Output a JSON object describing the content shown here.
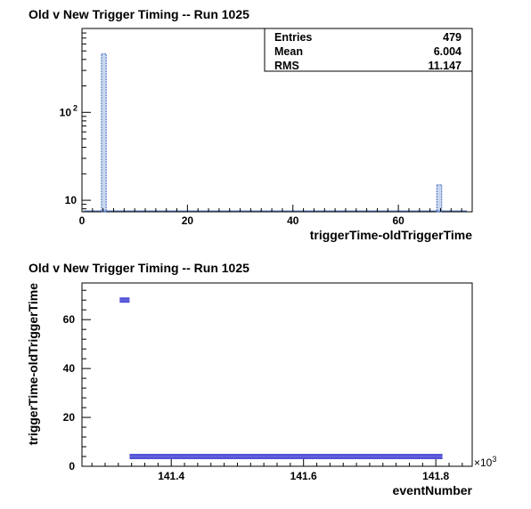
{
  "chart_data": [
    {
      "type": "bar",
      "title": "Old v New Trigger Timing -- Run 1025",
      "xlabel": "triggerTime-oldTriggerTime",
      "ylabel": "",
      "xlim": [
        0,
        74
      ],
      "ylim_log": [
        7.4,
        900
      ],
      "y_scale": "log",
      "x_ticks": [
        0,
        20,
        40,
        60
      ],
      "y_ticks": [
        {
          "value": 10,
          "label": "10"
        },
        {
          "value": 100,
          "label": "10",
          "exp": "2"
        }
      ],
      "bins": [
        {
          "x_low": 3.7,
          "x_high": 4.6,
          "value": 464
        },
        {
          "x_low": 67.3,
          "x_high": 68.2,
          "value": 15
        }
      ],
      "stats": [
        {
          "label": "Entries",
          "value": "479"
        },
        {
          "label": "Mean",
          "value": "6.004"
        },
        {
          "label": "RMS",
          "value": "11.147"
        }
      ],
      "grid": false,
      "colors": {
        "bar": "#5b7fc8",
        "axis": "#000000"
      }
    },
    {
      "type": "scatter",
      "title": "Old v New Trigger Timing -- Run 1025",
      "xlabel": "eventNumber",
      "ylabel": "triggerTime-oldTriggerTime",
      "x_multiplier": "×10",
      "x_multiplier_exp": "3",
      "xlim": [
        141.265,
        141.855
      ],
      "ylim": [
        0,
        75
      ],
      "x_ticks": [
        {
          "value": 141.4,
          "label": "141.4"
        },
        {
          "value": 141.6,
          "label": "141.6"
        },
        {
          "value": 141.8,
          "label": "141.8"
        }
      ],
      "y_ticks": [
        0,
        20,
        40,
        60
      ],
      "bands": [
        {
          "x_start": 141.322,
          "x_end": 141.337,
          "y": 68
        },
        {
          "x_start": 141.337,
          "x_end": 141.81,
          "y": 4
        }
      ],
      "grid": false,
      "colors": {
        "marker": "#5252d6",
        "axis": "#000000"
      }
    }
  ]
}
